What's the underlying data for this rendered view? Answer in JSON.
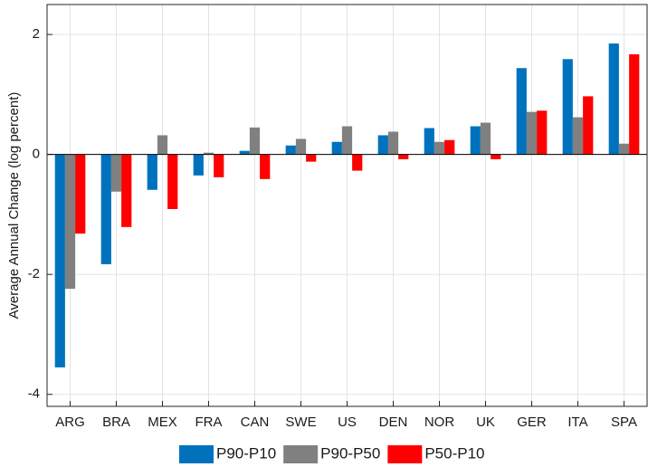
{
  "chart_data": {
    "type": "bar",
    "y_label": "Average Annual Change (log percent)",
    "categories": [
      "ARG",
      "BRA",
      "MEX",
      "FRA",
      "CAN",
      "SWE",
      "US",
      "DEN",
      "NOR",
      "UK",
      "GER",
      "ITA",
      "SPA"
    ],
    "series": [
      {
        "name": "P90-P10",
        "color": "#0072bd",
        "values": [
          -3.55,
          -1.83,
          -0.59,
          -0.35,
          0.06,
          0.15,
          0.21,
          0.32,
          0.44,
          0.47,
          1.44,
          1.59,
          1.85
        ]
      },
      {
        "name": "P90-P50",
        "color": "#808080",
        "values": [
          -2.24,
          -0.62,
          0.32,
          0.03,
          0.45,
          0.26,
          0.47,
          0.38,
          0.21,
          0.53,
          0.71,
          0.62,
          0.18
        ]
      },
      {
        "name": "P50-P10",
        "color": "#ff0000",
        "values": [
          -1.32,
          -1.21,
          -0.91,
          -0.38,
          -0.41,
          -0.12,
          -0.27,
          -0.08,
          0.24,
          -0.08,
          0.73,
          0.97,
          1.67
        ]
      }
    ],
    "ylim": [
      -4.2,
      2.5
    ],
    "yticks": [
      -4,
      -2,
      0,
      2
    ],
    "grid": true,
    "legend": "bottom"
  }
}
